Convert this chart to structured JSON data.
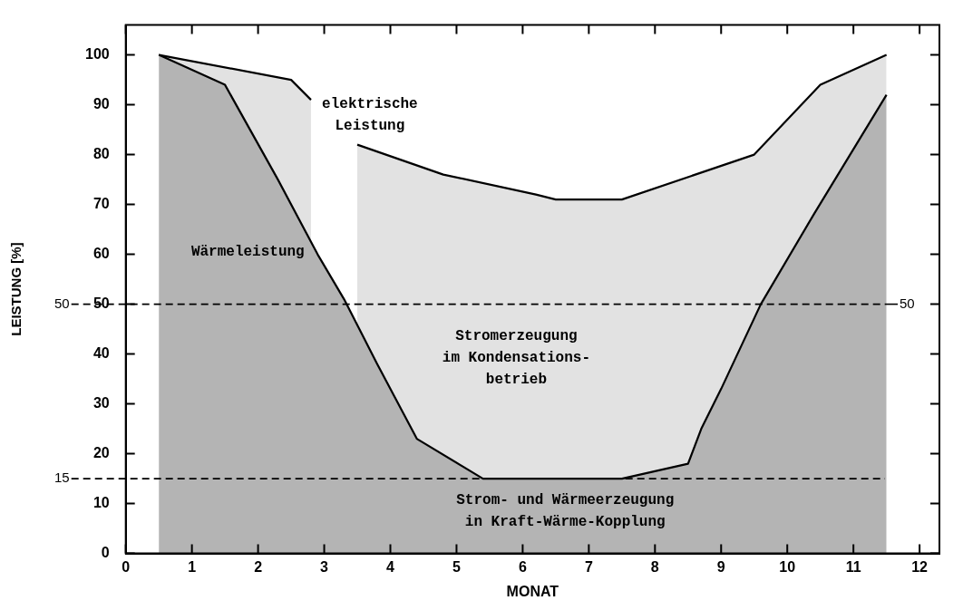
{
  "chart_data": {
    "type": "area",
    "xlabel": "MONAT",
    "ylabel": "LEISTUNG [%]",
    "xlim": [
      0,
      12.3
    ],
    "xticks": [
      0,
      1,
      2,
      3,
      4,
      5,
      6,
      7,
      8,
      9,
      10,
      11,
      12
    ],
    "ylim": [
      0,
      106
    ],
    "yticks": [
      0,
      10,
      20,
      30,
      40,
      50,
      60,
      70,
      80,
      90,
      100
    ],
    "grid": false,
    "legend": false,
    "line_style": "solid",
    "marker": "none",
    "series": [
      {
        "color": "#b4b4b4",
        "x": [
          0.5,
          1.5,
          2.3,
          2.9,
          3.3,
          3.8,
          4.4,
          5.4,
          7.5,
          8.5,
          8.7,
          9.0,
          9.6,
          10.4,
          11.5
        ],
        "values": [
          100,
          94,
          75,
          60,
          51,
          38,
          23,
          15,
          15,
          18,
          25,
          33,
          50,
          68,
          92
        ]
      },
      {
        "color": "#e2e2e2",
        "x": [
          0.5,
          2.5,
          2.8,
          3.1,
          3.5,
          4.8,
          6.2,
          6.5,
          7.5,
          9.5,
          10.5,
          11.5
        ],
        "values": [
          100,
          95,
          91,
          null,
          82,
          76,
          72,
          71,
          71,
          80,
          94,
          100
        ]
      }
    ],
    "ref_lines": [
      {
        "axis": "y",
        "value": 50,
        "label": "50"
      },
      {
        "axis": "y",
        "value": 15,
        "label": "15"
      },
      {
        "axis": "y",
        "value": 50,
        "label": "50"
      }
    ],
    "annotations": [
      "elektrische\nLeistung",
      "Wärmeleistung",
      "Stromerzeugung\nim Kondensations-\nbetrieb",
      "Strom- und Wärmeerzeugung\nin Kraft-Wärme-Kopplung"
    ]
  }
}
